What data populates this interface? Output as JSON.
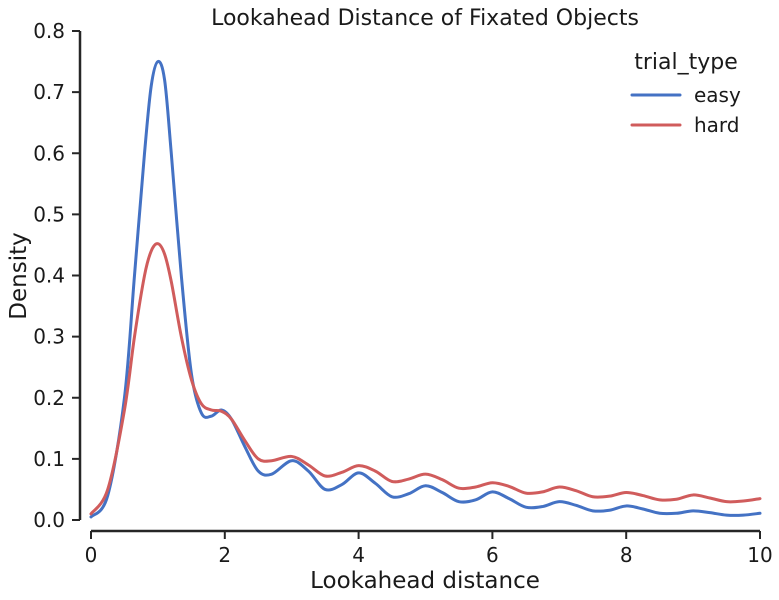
{
  "chart_data": {
    "type": "line",
    "title": "Lookahead Distance of Fixated Objects",
    "xlabel": "Lookahead distance",
    "ylabel": "Density",
    "xlim": [
      0,
      10
    ],
    "ylim": [
      0,
      0.8
    ],
    "xticks": [
      0,
      2,
      4,
      6,
      8,
      10
    ],
    "xtick_labels": [
      "0",
      "2",
      "4",
      "6",
      "8",
      "10"
    ],
    "yticks": [
      0.0,
      0.1,
      0.2,
      0.3,
      0.4,
      0.5,
      0.6,
      0.7,
      0.8
    ],
    "ytick_labels": [
      "0.0",
      "0.1",
      "0.2",
      "0.3",
      "0.4",
      "0.5",
      "0.6",
      "0.7",
      "0.8"
    ],
    "grid": false,
    "legend": {
      "title": "trial_type",
      "placement": "top-right"
    },
    "series": [
      {
        "name": "easy",
        "color": "#4472c4",
        "x": [
          0.0,
          0.25,
          0.5,
          0.65,
          0.8,
          0.9,
          1.0,
          1.1,
          1.2,
          1.35,
          1.5,
          1.65,
          1.8,
          1.95,
          2.1,
          2.3,
          2.5,
          2.7,
          3.0,
          3.25,
          3.5,
          3.75,
          4.0,
          4.25,
          4.5,
          4.75,
          5.0,
          5.25,
          5.5,
          5.75,
          6.0,
          6.25,
          6.5,
          6.75,
          7.0,
          7.25,
          7.5,
          7.75,
          8.0,
          8.25,
          8.5,
          8.75,
          9.0,
          9.25,
          9.5,
          9.75,
          10.0
        ],
        "y": [
          0.005,
          0.04,
          0.2,
          0.4,
          0.6,
          0.71,
          0.75,
          0.72,
          0.6,
          0.4,
          0.24,
          0.175,
          0.17,
          0.18,
          0.165,
          0.12,
          0.08,
          0.075,
          0.097,
          0.08,
          0.05,
          0.058,
          0.077,
          0.06,
          0.038,
          0.043,
          0.056,
          0.045,
          0.03,
          0.033,
          0.046,
          0.035,
          0.021,
          0.022,
          0.03,
          0.024,
          0.015,
          0.016,
          0.023,
          0.018,
          0.011,
          0.011,
          0.015,
          0.012,
          0.008,
          0.008,
          0.011
        ]
      },
      {
        "name": "hard",
        "color": "#d05c5c",
        "x": [
          0.0,
          0.25,
          0.5,
          0.65,
          0.8,
          0.9,
          1.0,
          1.1,
          1.2,
          1.35,
          1.5,
          1.65,
          1.8,
          1.95,
          2.1,
          2.3,
          2.5,
          2.7,
          3.0,
          3.25,
          3.5,
          3.75,
          4.0,
          4.25,
          4.5,
          4.75,
          5.0,
          5.25,
          5.5,
          5.75,
          6.0,
          6.25,
          6.5,
          6.75,
          7.0,
          7.25,
          7.5,
          7.75,
          8.0,
          8.25,
          8.5,
          8.75,
          9.0,
          9.25,
          9.5,
          9.75,
          10.0
        ],
        "y": [
          0.01,
          0.05,
          0.18,
          0.3,
          0.4,
          0.44,
          0.452,
          0.435,
          0.39,
          0.3,
          0.23,
          0.19,
          0.18,
          0.178,
          0.165,
          0.13,
          0.1,
          0.097,
          0.104,
          0.09,
          0.072,
          0.078,
          0.089,
          0.08,
          0.063,
          0.067,
          0.075,
          0.066,
          0.052,
          0.054,
          0.061,
          0.055,
          0.044,
          0.046,
          0.054,
          0.048,
          0.038,
          0.039,
          0.045,
          0.04,
          0.033,
          0.034,
          0.041,
          0.036,
          0.03,
          0.031,
          0.035
        ]
      }
    ]
  }
}
